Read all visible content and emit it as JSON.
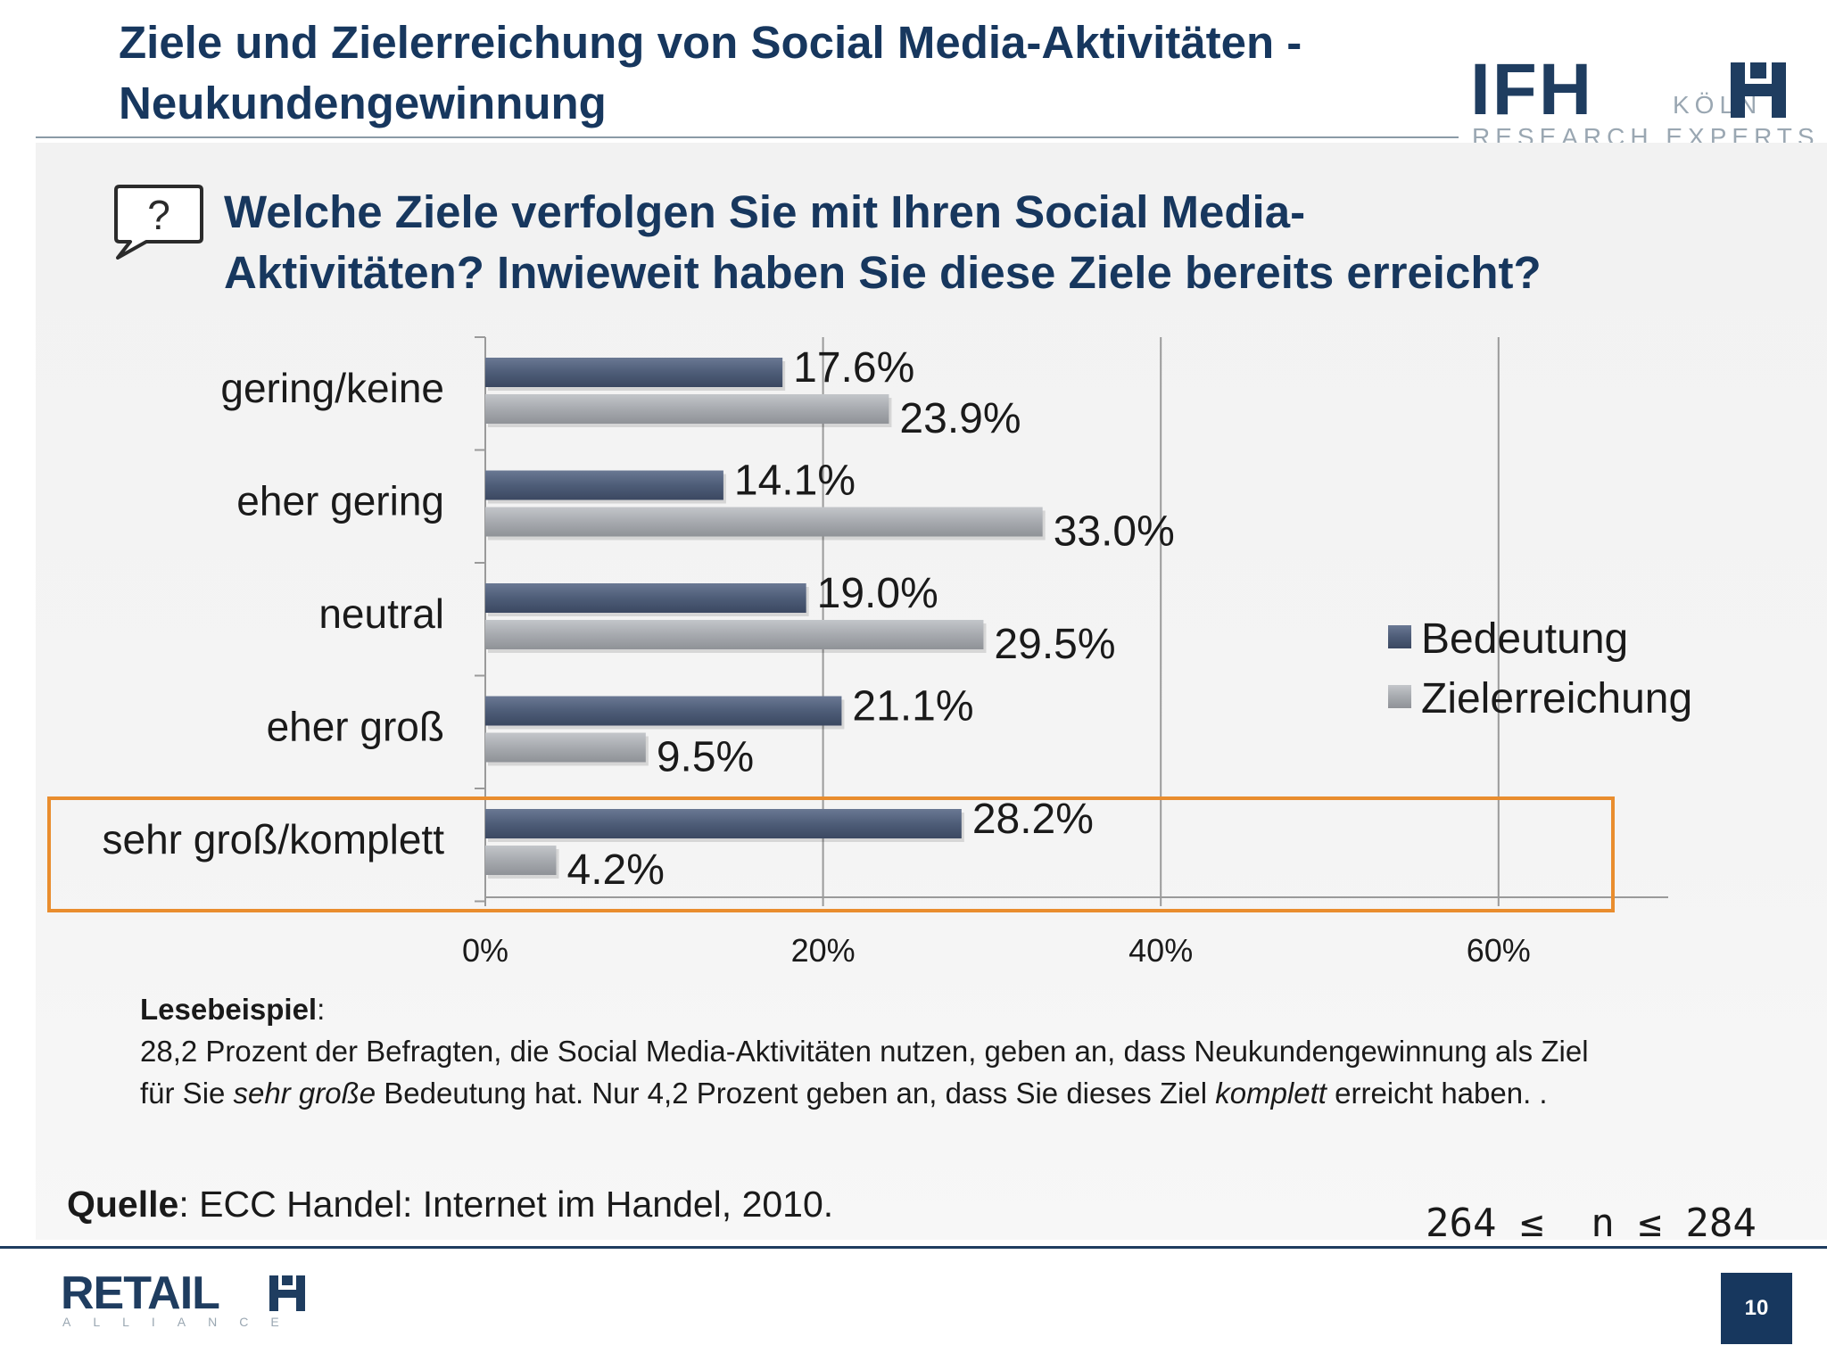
{
  "title": {
    "line1": "Ziele und Zielerreichung von Social Media-Aktivitäten -",
    "line2": "Neukundengewinnung"
  },
  "logo_ifh": {
    "word": "IFH",
    "city": "KÖLN",
    "tagline": "RESEARCH EXPERTS"
  },
  "question": {
    "icon": "question-speech-bubble-icon",
    "symbol": "?",
    "line1": "Welche Ziele verfolgen Sie mit Ihren Social Media-",
    "line2": "Aktivitäten? Inwieweit haben Sie diese Ziele bereits erreicht?"
  },
  "chart_data": {
    "type": "bar",
    "orientation": "horizontal",
    "categories": [
      "gering/keine",
      "eher gering",
      "neutral",
      "eher groß",
      "sehr groß/komplett"
    ],
    "series": [
      {
        "name": "Bedeutung",
        "values": [
          17.6,
          14.1,
          19.0,
          21.1,
          28.2
        ],
        "color": "#4e5d78"
      },
      {
        "name": "Zielerreichung",
        "values": [
          23.9,
          33.0,
          29.5,
          9.5,
          4.2
        ],
        "color": "#a7aaaf"
      }
    ],
    "data_labels": [
      [
        "17.6%",
        "14.1%",
        "19.0%",
        "21.1%",
        "28.2%"
      ],
      [
        "23.9%",
        "33.0%",
        "29.5%",
        "9.5%",
        "4.2%"
      ]
    ],
    "xlim": [
      0,
      70
    ],
    "xticks": [
      0,
      20,
      40,
      60
    ],
    "xtick_labels": [
      "0%",
      "20%",
      "40%",
      "60%"
    ],
    "grid": true,
    "legend": "right",
    "highlighted_category": "sehr groß/komplett",
    "highlight_color": "#e98d2e"
  },
  "reading_example": {
    "label": "Lesebeispiel",
    "colon": ":",
    "line1": "28,2 Prozent der Befragten, die Social Media-Aktivitäten nutzen, geben an, dass Neukundengewinnung als Ziel",
    "line2_a": "für Sie ",
    "line2_em1": "sehr große",
    "line2_b": " Bedeutung hat. Nur 4,2 Prozent geben an, dass Sie dieses Ziel ",
    "line2_em2": "komplett",
    "line2_c": " erreicht haben. ."
  },
  "source": {
    "label": "Quelle",
    "text": ": ECC Handel: Internet im Handel, 2010."
  },
  "sample": "264 ≤  n ≤ 284",
  "logo_retail": {
    "word": "RETAIL",
    "tagline": "ALLIANCE"
  },
  "page_number": "10"
}
